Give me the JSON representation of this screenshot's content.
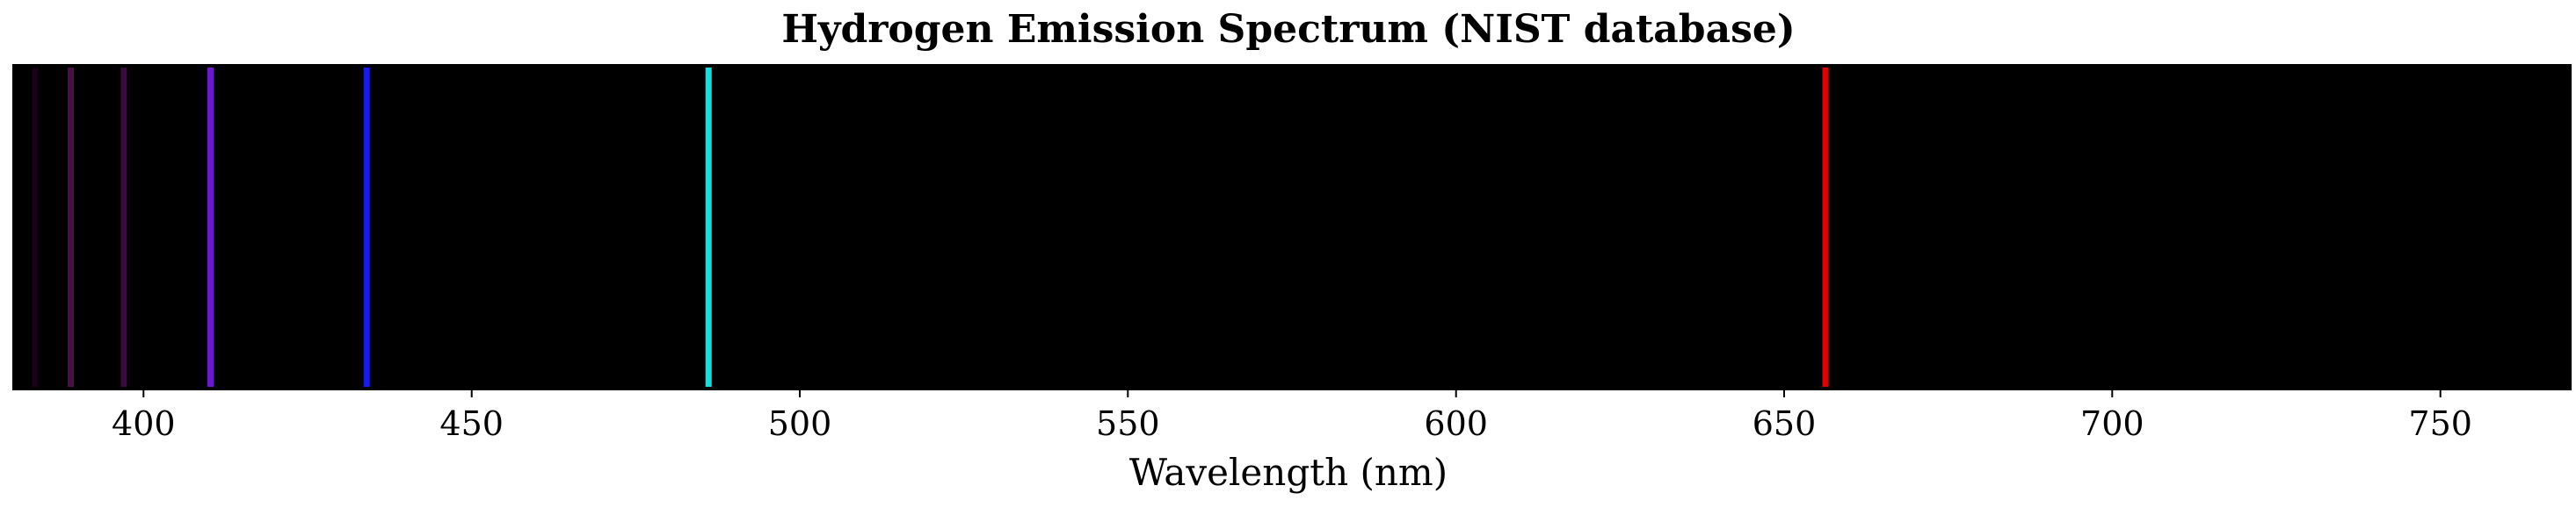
{
  "chart_data": {
    "type": "bar",
    "title": "Hydrogen Emission Spectrum (NIST database)",
    "xlabel": "Wavelength (nm)",
    "ylabel": "",
    "xlim": [
      380,
      770
    ],
    "ylim": [
      0,
      1
    ],
    "grid": false,
    "background_color": "#000000",
    "xticks": [
      400,
      450,
      500,
      550,
      600,
      650,
      700,
      750
    ],
    "xtick_labels": [
      "400",
      "450",
      "500",
      "550",
      "600",
      "650",
      "700",
      "750"
    ],
    "lines": [
      {
        "wavelength": 383.5,
        "color": "#1a0018"
      },
      {
        "wavelength": 388.9,
        "color": "#4a0f4a"
      },
      {
        "wavelength": 397.0,
        "color": "#3a0a3e"
      },
      {
        "wavelength": 410.2,
        "color": "#6a1ad0"
      },
      {
        "wavelength": 434.0,
        "color": "#1a1ae8"
      },
      {
        "wavelength": 486.1,
        "color": "#14e0e0"
      },
      {
        "wavelength": 656.3,
        "color": "#e00000"
      }
    ]
  }
}
